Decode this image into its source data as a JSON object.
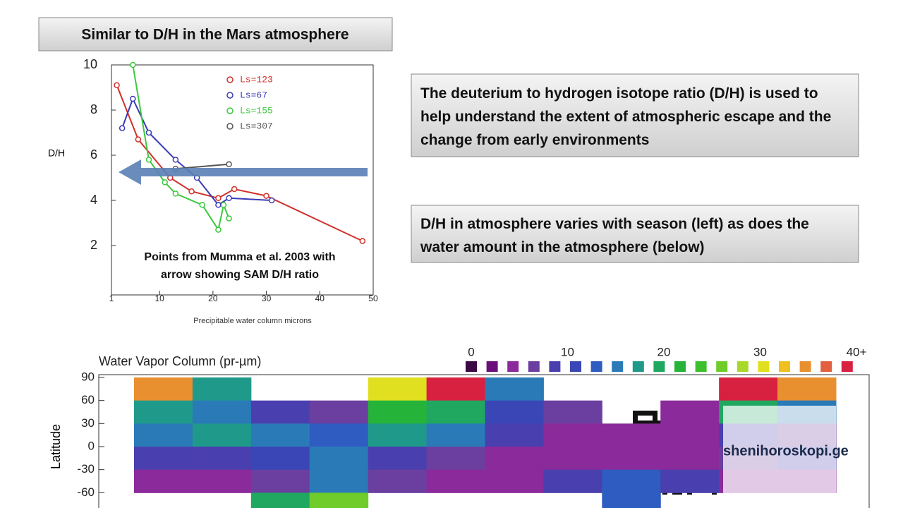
{
  "title_box": "Similar to D/H in the Mars atmosphere",
  "callouts": [
    "The deuterium to hydrogen isotope ratio (D/H) is used to help understand the extent of atmospheric escape and the change from early environments",
    "D/H in atmosphere varies with season (left) as does the water amount in the atmosphere (below)"
  ],
  "watermark": "shenihoroskopi.ge",
  "chart_data": [
    {
      "type": "line",
      "ylabel": "D/H",
      "xlabel": "Precipitable water column  microns",
      "xlim": [
        1,
        50
      ],
      "xticks": [
        1,
        10,
        20,
        30,
        40,
        50
      ],
      "ylim": [
        0,
        10
      ],
      "yticks": [
        2,
        4,
        6,
        8,
        10
      ],
      "annotation": [
        "Points from Mumma et al. 2003 with",
        "arrow showing SAM D/H ratio"
      ],
      "series": [
        {
          "name": "Ls=123",
          "color": "#d0302a",
          "x": [
            2,
            6,
            12,
            16,
            21,
            24,
            30,
            48
          ],
          "values": [
            9.1,
            6.7,
            5.0,
            4.4,
            4.1,
            4.5,
            4.2,
            2.2
          ]
        },
        {
          "name": "Ls=67",
          "color": "#3a3ab8",
          "x": [
            3,
            5,
            8,
            13,
            17,
            21,
            23,
            31
          ],
          "values": [
            7.2,
            8.5,
            7.0,
            5.8,
            5.0,
            3.8,
            4.1,
            4.0
          ]
        },
        {
          "name": "Ls=155",
          "color": "#3cc83c",
          "x": [
            5,
            8,
            11,
            13,
            18,
            21,
            22,
            23
          ],
          "values": [
            10,
            5.8,
            4.8,
            4.3,
            3.8,
            2.7,
            3.8,
            3.2
          ]
        },
        {
          "name": "Ls=307",
          "color": "#555555",
          "x": [
            13,
            23
          ],
          "values": [
            5.4,
            5.6
          ]
        }
      ]
    },
    {
      "type": "heatmap",
      "title": "Water Vapor Column (pr-µm)",
      "ylabel": "Latitude",
      "ylim": [
        -90,
        90
      ],
      "yticks": [
        90,
        60,
        30,
        0,
        -30,
        -60
      ],
      "rows": [
        75,
        45,
        15,
        -15,
        -45,
        -75
      ],
      "z": [
        [
          35,
          18,
          null,
          null,
          30,
          40,
          15,
          null,
          null,
          null,
          38,
          34
        ],
        [
          18,
          16,
          10,
          8,
          22,
          20,
          12,
          8,
          null,
          6,
          20,
          16
        ],
        [
          16,
          17,
          16,
          14,
          18,
          16,
          10,
          6,
          5,
          6,
          10,
          8
        ],
        [
          10,
          9,
          12,
          16,
          10,
          8,
          6,
          5,
          5,
          6,
          8,
          9
        ],
        [
          6,
          5,
          8,
          16,
          8,
          5,
          5,
          10,
          14,
          10,
          6,
          6
        ],
        [
          null,
          null,
          20,
          26,
          null,
          null,
          null,
          null,
          14,
          null,
          null,
          null
        ]
      ],
      "clim": [
        0,
        40
      ],
      "cticks": [
        0,
        10,
        20,
        30,
        {
          "value": 40,
          "label": "40+"
        }
      ],
      "colors": [
        "#3b0a45",
        "#6a0f7a",
        "#8b2a9a",
        "#6b3fa0",
        "#4a3fae",
        "#3a46b5",
        "#2f5cc0",
        "#2a7ab8",
        "#1f9a8a",
        "#20a860",
        "#25b33a",
        "#3cbf2c",
        "#6fcc2a",
        "#a8d82a",
        "#e0e020",
        "#f0c020",
        "#e89030",
        "#e06040",
        "#d82040"
      ]
    }
  ]
}
